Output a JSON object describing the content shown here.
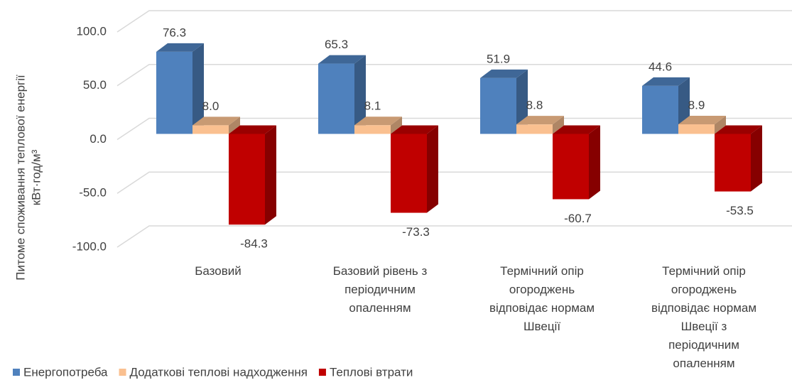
{
  "chart_data": {
    "type": "bar3d",
    "y_label": [
      "Питоме споживання теплової енергії",
      "кВт·год/м³"
    ],
    "categories": [
      "Базовий",
      "Базовий рівень з періодичним опаленням",
      "Термічний опір огороджень відповідає нормам Швеції",
      "Термічний опір огороджень відповідає нормам Швеції з періодичним опаленням"
    ],
    "series": [
      {
        "name": "Енергопотреба",
        "color": "#4f81bd",
        "values": [
          76.3,
          65.3,
          51.9,
          44.6
        ],
        "value_labels": [
          "76.3",
          "65.3",
          "51.9",
          "44.6"
        ]
      },
      {
        "name": "Додаткові теплові надходження",
        "color": "#fac090",
        "values": [
          8.0,
          8.1,
          8.8,
          8.9
        ],
        "value_labels": [
          "8.0",
          "8.1",
          "8.8",
          "8.9"
        ]
      },
      {
        "name": "Теплові втрати",
        "color": "#c00000",
        "values": [
          -84.3,
          -73.3,
          -60.7,
          -53.5
        ],
        "value_labels": [
          "-84.3",
          "-73.3",
          "-60.7",
          "-53.5"
        ]
      }
    ],
    "ylim": [
      -100,
      100
    ],
    "yticks": [
      {
        "value": -100,
        "label": "-100.0"
      },
      {
        "value": -50,
        "label": "-50.0"
      },
      {
        "value": 0,
        "label": "0.0"
      },
      {
        "value": 50,
        "label": "50.0"
      },
      {
        "value": 100,
        "label": "100.0"
      }
    ],
    "grid": true
  }
}
